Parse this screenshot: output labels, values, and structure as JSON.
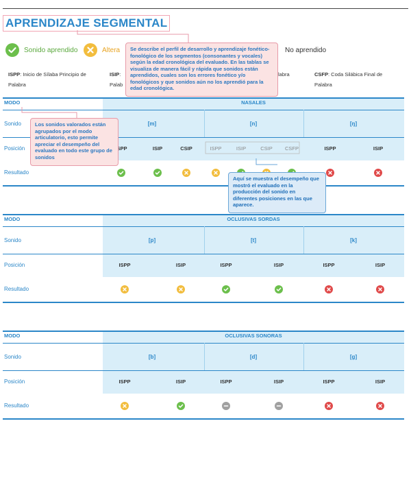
{
  "page": {
    "title": "APRENDIZAJE SEGMENTAL"
  },
  "colors": {
    "blue": "#2a86c8",
    "header_bg": "#d9eef9",
    "correct": "#6cbf4c",
    "altered": "#f2bd3e",
    "not_learned": "#e04a4a",
    "neutral": "#a0a0a0"
  },
  "legend": [
    {
      "key": "correct",
      "label": "Sonido aprendido"
    },
    {
      "key": "altered",
      "label": "Altera"
    },
    {
      "key": "not_learned",
      "label": "No aprendido"
    }
  ],
  "abbreviations": [
    {
      "code": "ISPP",
      "text": ": Inicio de Sílaba Principio de",
      "text2": "Palabra"
    },
    {
      "code": "ISIP",
      "text": ":",
      "text2": "Palab"
    },
    {
      "code": "",
      "text": "labra",
      "text2": ""
    },
    {
      "code": "CSFP",
      "text": ": Coda Silábica Final de",
      "text2": "Palabra"
    }
  ],
  "callouts": {
    "top": "Se describe el perfil de desarrollo y aprendizaje fonético-fonológico de los segmentos (consonantes y vocales) según la edad cronológica del evaluado. En las tablas se visualiza de manera fácil y rápida que sonidos están aprendidos, cuales son los errores fonético y/o fonológicos y que sonidos aún no los aprendió para la edad cronológica.",
    "left": "Los sonidos valorados están agrupados por el modo articulatorio, esto permite apreciar el desempeño del evaluado en todo este grupo de sonidos",
    "mid": "Aquí se muestra el desempeño que mostró el evaluado en la producción del sonido en diferentes posiciones en las que aparece."
  },
  "row_labels": {
    "modo": "MODO",
    "sonido": "Sonido",
    "posicion": "Posición",
    "resultado": "Resultado"
  },
  "tables": [
    {
      "group": "NASALES",
      "sounds": [
        "[m]",
        "[n]",
        "[ŋ]"
      ],
      "positions": [
        "ISPP",
        "ISIP",
        "CSIP",
        "ISPP",
        "ISIP",
        "CSIP",
        "CSFP",
        "ISPP",
        "ISIP"
      ],
      "results": [
        "correct",
        "correct",
        "altered",
        "altered",
        "correct",
        "altered",
        "correct",
        "not_learned",
        "not_learned"
      ]
    },
    {
      "group": "OCLUSIVAS SORDAS",
      "sounds": [
        "[p]",
        "[t]",
        "[k]"
      ],
      "positions": [
        "ISPP",
        "ISIP",
        "ISPP",
        "ISIP",
        "ISPP",
        "ISIP"
      ],
      "results": [
        "altered",
        "altered",
        "correct",
        "correct",
        "not_learned",
        "not_learned"
      ]
    },
    {
      "group": "OCLUSIVAS SONORAS",
      "sounds": [
        "[b]",
        "[d]",
        "[g]"
      ],
      "positions": [
        "ISPP",
        "ISIP",
        "ISPP",
        "ISIP",
        "ISPP",
        "ISIP"
      ],
      "results": [
        "altered",
        "correct",
        "neutral",
        "neutral",
        "not_learned",
        "not_learned"
      ]
    }
  ]
}
